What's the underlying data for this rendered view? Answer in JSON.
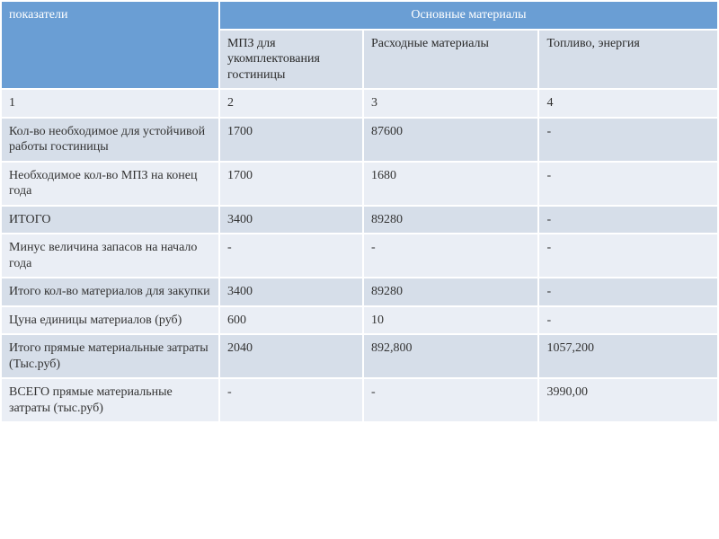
{
  "table": {
    "type": "table",
    "background_color": "#ffffff",
    "header_bg": "#6a9ed4",
    "header_fg": "#ffffff",
    "band_a_bg": "#eaeef5",
    "band_b_bg": "#d6dee9",
    "font_family": "Georgia, serif",
    "font_size_pt": 12,
    "col_widths_pct": [
      30.5,
      20.0,
      24.5,
      25.0
    ],
    "header": {
      "col1": "показатели",
      "merged": "Основные материалы",
      "sub1": "МПЗ для укомплектования гостиницы",
      "sub2": "Расходные материалы",
      "sub3": "Топливо, энергия"
    },
    "rows": [
      {
        "band": "a",
        "c": [
          "1",
          "2",
          "3",
          "4"
        ]
      },
      {
        "band": "b",
        "c": [
          "Кол-во необходимое для устойчивой работы гостиницы",
          "1700",
          "87600",
          "-"
        ]
      },
      {
        "band": "a",
        "c": [
          "Необходимое кол-во МПЗ на конец года",
          "1700",
          "1680",
          "-"
        ]
      },
      {
        "band": "b",
        "c": [
          "ИТОГО",
          "3400",
          "89280",
          "-"
        ]
      },
      {
        "band": "a",
        "c": [
          "Минус величина запасов на начало года",
          "-",
          "-",
          "-"
        ]
      },
      {
        "band": "b",
        "c": [
          "Итого кол-во материалов для закупки",
          "3400",
          "89280",
          "-"
        ]
      },
      {
        "band": "a",
        "c": [
          "Цуна единицы материалов (руб)",
          "600",
          "10",
          "-"
        ]
      },
      {
        "band": "b",
        "c": [
          "Итого прямые материальные затраты (Тыс.руб)",
          "2040",
          "892,800",
          "1057,200"
        ]
      },
      {
        "band": "a",
        "c": [
          "ВСЕГО прямые материальные затраты (тыс.руб)",
          "-",
          "-",
          "3990,00"
        ]
      }
    ]
  }
}
